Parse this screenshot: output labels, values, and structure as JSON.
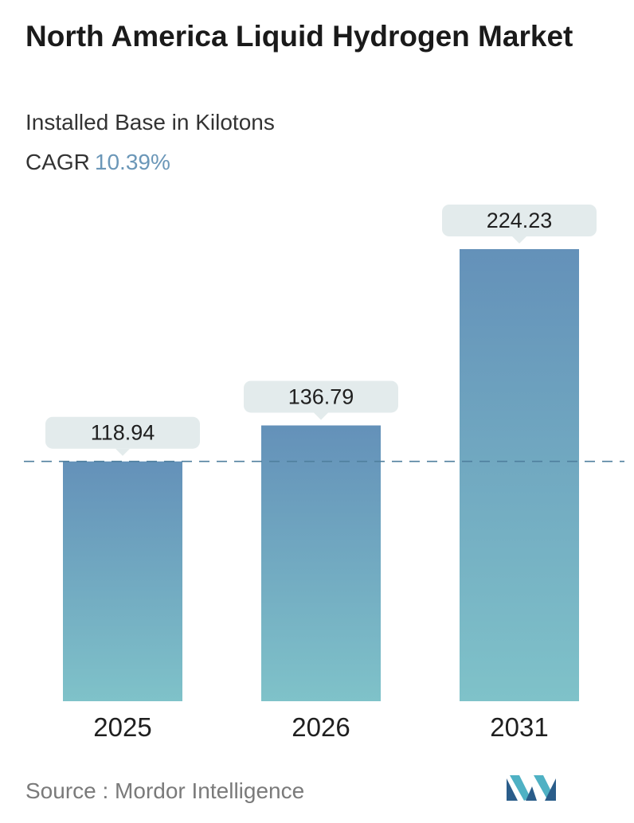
{
  "header": {
    "title": "North America Liquid Hydrogen Market",
    "subtitle": "Installed Base in Kilotons",
    "cagr_label": "CAGR",
    "cagr_value": "10.39%"
  },
  "footer": {
    "source": "Source :  Mordor Intelligence",
    "logo_icon": "mordor-intelligence-logo-icon"
  },
  "colors": {
    "bar_top": "#6491b9",
    "bar_bottom": "#7fc2c9",
    "label_box": "#e3ebec",
    "reference_line": "#4f7f9e",
    "cagr_accent": "#6b97b8"
  },
  "chart_data": {
    "type": "bar",
    "categories": [
      "2025",
      "2026",
      "2031"
    ],
    "values": [
      118.94,
      136.79,
      224.23
    ],
    "value_labels": [
      "118.94",
      "136.79",
      "224.23"
    ],
    "title": "North America Liquid Hydrogen Market",
    "subtitle": "Installed Base in Kilotons",
    "xlabel": "",
    "ylabel": "",
    "grid": false,
    "reference_line": "dashed horizontal line at first bar value"
  }
}
